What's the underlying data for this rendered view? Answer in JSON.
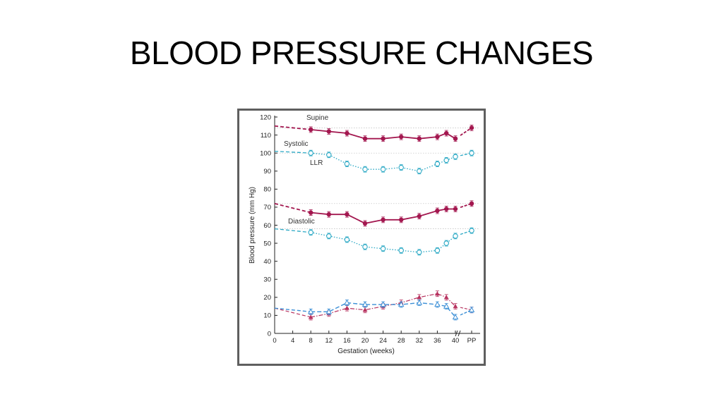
{
  "slide": {
    "title": "BLOOD PRESSURE CHANGES"
  },
  "colors": {
    "supine": "#a3174f",
    "llr": "#2aa8c4",
    "supine_delta": "#b7325f",
    "llr_delta": "#3b8fd6",
    "background": "#ffffff",
    "frame": "#5f5f5f"
  },
  "chart_data": {
    "type": "line",
    "title": "",
    "xlabel": "Gestation (weeks)",
    "ylabel": "Blood pressure (mm Hg)",
    "ylim": [
      0,
      120
    ],
    "yticks": [
      0,
      10,
      20,
      30,
      40,
      50,
      60,
      70,
      80,
      90,
      100,
      110,
      120
    ],
    "xticks": [
      "0",
      "4",
      "8",
      "12",
      "16",
      "20",
      "24",
      "28",
      "32",
      "36",
      "40",
      "PP"
    ],
    "annotations": {
      "supine": "Supine",
      "systolic": "Systolic",
      "llr": "LLR",
      "diastolic": "Diastolic"
    },
    "reference_lines": [
      114,
      100,
      72,
      58
    ],
    "series": [
      {
        "key": "supine_systolic",
        "x": [
          0,
          8,
          12,
          16,
          20,
          24,
          28,
          32,
          36,
          38,
          40,
          "PP"
        ],
        "values": [
          115,
          113,
          112,
          111,
          108,
          108,
          109,
          108,
          109,
          111,
          108,
          114
        ],
        "marker": "filled-circle",
        "style": "solid"
      },
      {
        "key": "llr_systolic",
        "x": [
          0,
          8,
          12,
          16,
          20,
          24,
          28,
          32,
          36,
          38,
          40,
          "PP"
        ],
        "values": [
          101,
          100,
          99,
          94,
          91,
          91,
          92,
          90,
          94,
          96,
          98,
          100
        ],
        "marker": "open-circle",
        "style": "dotted"
      },
      {
        "key": "supine_diastolic",
        "x": [
          0,
          8,
          12,
          16,
          20,
          24,
          28,
          32,
          36,
          38,
          40,
          "PP"
        ],
        "values": [
          72,
          67,
          66,
          66,
          61,
          63,
          63,
          65,
          68,
          69,
          69,
          72
        ],
        "marker": "filled-circle",
        "style": "solid"
      },
      {
        "key": "llr_diastolic",
        "x": [
          0,
          8,
          12,
          16,
          20,
          24,
          28,
          32,
          36,
          38,
          40,
          "PP"
        ],
        "values": [
          58,
          56,
          54,
          52,
          48,
          47,
          46,
          45,
          46,
          50,
          54,
          57
        ],
        "marker": "open-circle",
        "style": "dotted"
      },
      {
        "key": "supine_pulse_pressure",
        "x": [
          0,
          8,
          12,
          16,
          20,
          24,
          28,
          32,
          36,
          38,
          40,
          "PP"
        ],
        "values": [
          14,
          9,
          11,
          14,
          13,
          15,
          17,
          20,
          22,
          20,
          15,
          13
        ],
        "marker": "filled-triangle",
        "style": "dash-dot"
      },
      {
        "key": "llr_pulse_pressure",
        "x": [
          0,
          8,
          12,
          16,
          20,
          24,
          28,
          32,
          36,
          38,
          40,
          "PP"
        ],
        "values": [
          14,
          12,
          12,
          17,
          16,
          16,
          16,
          17,
          16,
          15,
          9,
          13
        ],
        "marker": "open-triangle",
        "style": "dashed"
      }
    ]
  }
}
